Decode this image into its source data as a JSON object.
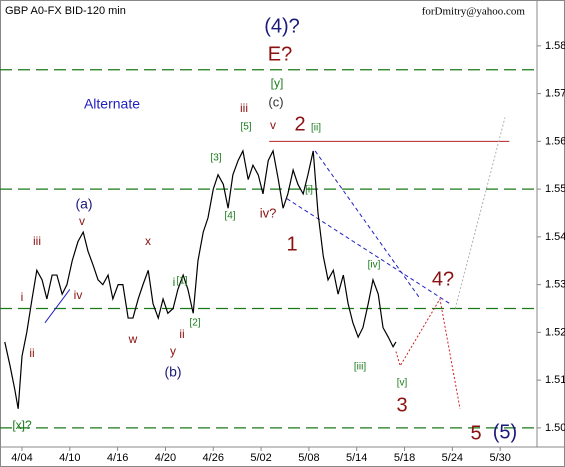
{
  "chart_data": {
    "type": "line",
    "title": "GBP A0-FX BID-120 min",
    "watermark": "forDmitry@yahoo.com",
    "x": [
      -0.36,
      -0.25,
      -0.15,
      -0.08,
      0,
      0.1,
      0.21,
      0.31,
      0.42,
      0.52,
      0.63,
      0.73,
      0.84,
      0.94,
      1.05,
      1.17,
      1.28,
      1.38,
      1.49,
      1.59,
      1.69,
      1.8,
      1.9,
      2.01,
      2.11,
      2.22,
      2.32,
      2.43,
      2.53,
      2.64,
      2.74,
      2.85,
      2.95,
      3.05,
      3.16,
      3.26,
      3.37,
      3.47,
      3.58,
      3.68,
      3.79,
      3.89,
      4.0,
      4.1,
      4.21,
      4.31,
      4.41,
      4.52,
      4.62,
      4.73,
      4.83,
      4.94,
      5.04,
      5.15,
      5.25,
      5.36,
      5.46,
      5.56,
      5.67,
      5.77,
      5.88,
      5.98,
      6.09,
      6.19,
      6.3,
      6.4,
      6.51,
      6.61,
      6.72,
      6.82,
      6.92,
      7.03,
      7.13,
      7.24,
      7.34,
      7.45,
      7.55,
      7.66,
      7.76,
      7.82
    ],
    "series": [
      {
        "color": "#000000",
        "values": [
          1.518,
          1.513,
          1.508,
          1.504,
          1.515,
          1.52,
          1.527,
          1.533,
          1.531,
          1.527,
          1.532,
          1.532,
          1.528,
          1.53,
          1.535,
          1.539,
          1.541,
          1.537,
          1.534,
          1.531,
          1.53,
          1.532,
          1.527,
          1.53,
          1.53,
          1.523,
          1.523,
          1.527,
          1.53,
          1.533,
          1.526,
          1.523,
          1.527,
          1.524,
          1.525,
          1.529,
          1.532,
          1.529,
          1.524,
          1.535,
          1.541,
          1.544,
          1.55,
          1.553,
          1.551,
          1.546,
          1.553,
          1.556,
          1.558,
          1.552,
          1.555,
          1.553,
          1.549,
          1.556,
          1.558,
          1.552,
          1.546,
          1.549,
          1.554,
          1.551,
          1.549,
          1.553,
          1.558,
          1.545,
          1.536,
          1.531,
          1.533,
          1.528,
          1.532,
          1.526,
          1.522,
          1.519,
          1.521,
          1.526,
          1.531,
          1.528,
          1.521,
          1.519,
          1.517,
          1.518
        ]
      }
    ],
    "xlim": [
      -0.46,
      10.77
    ],
    "xticks": [
      {
        "value": 0,
        "label": "4/04"
      },
      {
        "value": 1,
        "label": "4/10"
      },
      {
        "value": 2,
        "label": "4/16"
      },
      {
        "value": 3,
        "label": "4/20"
      },
      {
        "value": 4,
        "label": "4/26"
      },
      {
        "value": 5,
        "label": "5/02"
      },
      {
        "value": 6,
        "label": "5/08"
      },
      {
        "value": 7,
        "label": "5/14"
      },
      {
        "value": 8,
        "label": "5/18"
      },
      {
        "value": 9,
        "label": "5/24"
      },
      {
        "value": 10,
        "label": "5/30"
      }
    ],
    "ylim": [
      1.496,
      1.5896
    ],
    "yticks": [
      {
        "value": 1.5,
        "label": "1.50"
      },
      1.51,
      1.52,
      1.53,
      1.54,
      1.55,
      1.56,
      1.57,
      1.58
    ],
    "hlines": {
      "color": "#1a7a1a",
      "values": [
        1.5,
        1.525,
        1.55,
        1.575
      ]
    },
    "lines": [
      {
        "color": "#b22222",
        "style": "solid",
        "x": [
          5.17,
          10.19
        ],
        "values": [
          1.56,
          1.56
        ]
      },
      {
        "color": "#2020c0",
        "style": "dashed",
        "x": [
          5.54,
          8.95
        ],
        "values": [
          1.548,
          1.526
        ]
      },
      {
        "color": "#2020c0",
        "style": "dashed",
        "x": [
          6.13,
          8.33
        ],
        "values": [
          1.558,
          1.527
        ]
      },
      {
        "color": "#d02020",
        "style": "dotted",
        "x": [
          7.82,
          7.91,
          8.74,
          9.16
        ],
        "values": [
          1.516,
          1.513,
          1.527,
          1.504
        ]
      },
      {
        "color": "#b0b0b0",
        "style": "dotted",
        "x": [
          9.06,
          10.1
        ],
        "values": [
          1.525,
          1.565
        ]
      },
      {
        "color": "#2020c0",
        "style": "solid",
        "x": [
          0.48,
          1.0
        ],
        "values": [
          1.522,
          1.529
        ]
      }
    ],
    "annotations": [
      {
        "text": "(4)?",
        "color": "#1a1a7a"
      },
      {
        "text": "E?",
        "color": "#8b1010"
      },
      {
        "text": "[y]",
        "color": "#1a7a1a"
      },
      {
        "text": "(c)",
        "color": "#333333"
      },
      {
        "text": "iii",
        "color": "#8b1010"
      },
      {
        "text": "[5]",
        "color": "#1a7a1a"
      },
      {
        "text": "v",
        "color": "#8b1010"
      },
      {
        "text": "2",
        "color": "#8b1010"
      },
      {
        "text": "[ii]",
        "color": "#1a7a1a"
      },
      {
        "text": "Alternate",
        "color": "#2020c0"
      },
      {
        "text": "[3]",
        "color": "#1a7a1a"
      },
      {
        "text": "[i]",
        "color": "#1a7a1a"
      },
      {
        "text": "[4]",
        "color": "#1a7a1a"
      },
      {
        "text": "iv?",
        "color": "#8b1010"
      },
      {
        "text": "1",
        "color": "#8b1010"
      },
      {
        "text": "(a)",
        "color": "#1a1a7a"
      },
      {
        "text": "v",
        "color": "#8b1010"
      },
      {
        "text": "x",
        "color": "#8b1010"
      },
      {
        "text": "iii",
        "color": "#8b1010"
      },
      {
        "text": "[iv]",
        "color": "#1a7a1a"
      },
      {
        "text": "4?",
        "color": "#8b1010"
      },
      {
        "text": "[1]",
        "color": "#1a7a1a"
      },
      {
        "text": "i",
        "color": "#1a7a1a"
      },
      {
        "text": "i",
        "color": "#8b1010"
      },
      {
        "text": "iv",
        "color": "#8b1010"
      },
      {
        "text": "[2]",
        "color": "#1a7a1a"
      },
      {
        "text": "ii",
        "color": "#8b1010"
      },
      {
        "text": "w",
        "color": "#8b1010"
      },
      {
        "text": "y",
        "color": "#8b1010"
      },
      {
        "text": "ii",
        "color": "#8b1010"
      },
      {
        "text": "[iii]",
        "color": "#1a7a1a"
      },
      {
        "text": "(b)",
        "color": "#1a1a7a"
      },
      {
        "text": "[v]",
        "color": "#1a7a1a"
      },
      {
        "text": "3",
        "color": "#8b1010"
      },
      {
        "text": "[x]?",
        "color": "#1a7a1a"
      },
      {
        "text": "5",
        "color": "#8b1010"
      },
      {
        "text": "(5)",
        "color": "#1a1a7a"
      }
    ]
  }
}
